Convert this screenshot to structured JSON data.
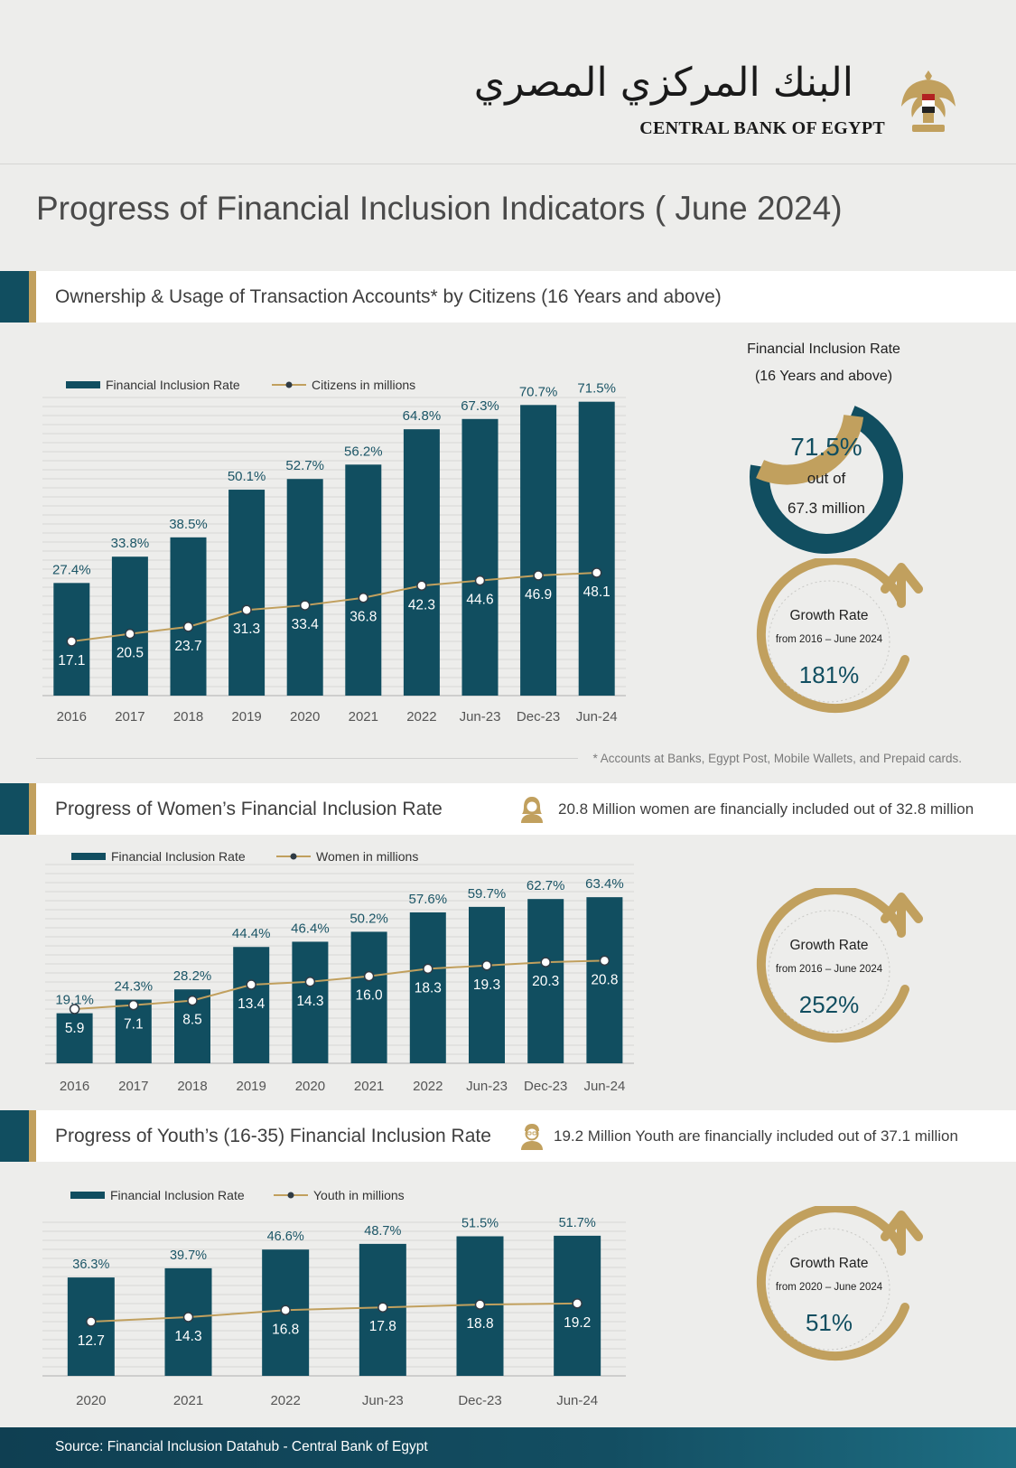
{
  "header": {
    "logo_arabic": "البنك المركزي المصري",
    "logo_english": "CENTRAL BANK OF EGYPT"
  },
  "page_title": "Progress of Financial Inclusion Indicators ( June 2024)",
  "sections": [
    {
      "title": "Ownership & Usage of Transaction Accounts* by Citizens (16 Years and above)"
    },
    {
      "title": "Progress of Women’s Financial Inclusion Rate",
      "note": "20.8 Million women are financially included out of 32.8 million"
    },
    {
      "title": "Progress of Youth’s (16-35) Financial Inclusion Rate",
      "note": "19.2 Million Youth  are financially included out of 37.1 million"
    }
  ],
  "inclusion_donut": {
    "title_line1": "Financial Inclusion Rate",
    "title_line2": "(16 Years and above)",
    "value_label": "71.5%",
    "value": 71.5,
    "sub1": "out of",
    "sub2": "67.3 million"
  },
  "growth": [
    {
      "title": "Growth Rate",
      "period": "from 2016 – June 2024",
      "value": "181%"
    },
    {
      "title": "Growth Rate",
      "period": "from 2016 – June 2024",
      "value": "252%"
    },
    {
      "title": "Growth Rate",
      "period": "from 2020 – June 2024",
      "value": "51%"
    }
  ],
  "footnote": "* Accounts at Banks, Egypt Post, Mobile Wallets, and Prepaid cards.",
  "source": "Source:  Financial Inclusion Datahub - Central Bank of Egypt",
  "colors": {
    "teal": "#114e60",
    "gold": "#c1a05e",
    "bar_label": "#1b5566"
  },
  "chart_data": [
    {
      "type": "bar",
      "categories": [
        "2016",
        "2017",
        "2018",
        "2019",
        "2020",
        "2021",
        "2022",
        "Jun-23",
        "Dec-23",
        "Jun-24"
      ],
      "series": [
        {
          "name": "Financial Inclusion Rate",
          "type": "bar",
          "values": [
            27.4,
            33.8,
            38.5,
            50.1,
            52.7,
            56.2,
            64.8,
            67.3,
            70.7,
            71.5
          ],
          "labels": [
            "27.4%",
            "33.8%",
            "38.5%",
            "50.1%",
            "52.7%",
            "56.2%",
            "64.8%",
            "67.3%",
            "70.7%",
            "71.5%"
          ]
        },
        {
          "name": "Citizens in millions",
          "type": "line",
          "values": [
            17.1,
            20.5,
            23.7,
            31.3,
            33.4,
            36.8,
            42.3,
            44.6,
            46.9,
            48.1
          ],
          "labels": [
            "17.1",
            "20.5",
            "23.7",
            "31.3",
            "33.4",
            "36.8",
            "42.3",
            "44.6",
            "46.9",
            "48.1"
          ]
        }
      ],
      "ylim": [
        0,
        80
      ],
      "legend_position": "top-left",
      "grid": true
    },
    {
      "type": "bar",
      "categories": [
        "2016",
        "2017",
        "2018",
        "2019",
        "2020",
        "2021",
        "2022",
        "Jun-23",
        "Dec-23",
        "Jun-24"
      ],
      "series": [
        {
          "name": "Financial Inclusion Rate",
          "type": "bar",
          "values": [
            19.1,
            24.3,
            28.2,
            44.4,
            46.4,
            50.2,
            57.6,
            59.7,
            62.7,
            63.4
          ],
          "labels": [
            "19.1%",
            "24.3%",
            "28.2%",
            "44.4%",
            "46.4%",
            "50.2%",
            "57.6%",
            "59.7%",
            "62.7%",
            "63.4%"
          ]
        },
        {
          "name": "Women in millions",
          "type": "line",
          "values": [
            5.9,
            7.1,
            8.5,
            13.4,
            14.3,
            16.0,
            18.3,
            19.3,
            20.3,
            20.8
          ],
          "labels": [
            "5.9",
            "7.1",
            "8.5",
            "13.4",
            "14.3",
            "16.0",
            "18.3",
            "19.3",
            "20.3",
            "20.8"
          ]
        }
      ],
      "ylim": [
        0,
        70
      ],
      "legend_position": "top-left",
      "grid": true
    },
    {
      "type": "bar",
      "categories": [
        "2020",
        "2021",
        "2022",
        "Jun-23",
        "Dec-23",
        "Jun-24"
      ],
      "series": [
        {
          "name": "Financial Inclusion Rate",
          "type": "bar",
          "values": [
            36.3,
            39.7,
            46.6,
            48.7,
            51.5,
            51.7
          ],
          "labels": [
            "36.3%",
            "39.7%",
            "46.6%",
            "48.7%",
            "51.5%",
            "51.7%"
          ]
        },
        {
          "name": "Youth in millions",
          "type": "line",
          "values": [
            12.7,
            14.3,
            16.8,
            17.8,
            18.8,
            19.2
          ],
          "labels": [
            "12.7",
            "14.3",
            "16.8",
            "17.8",
            "18.8",
            "19.2"
          ]
        }
      ],
      "ylim": [
        0,
        60
      ],
      "legend_position": "top-left",
      "grid": true
    }
  ]
}
